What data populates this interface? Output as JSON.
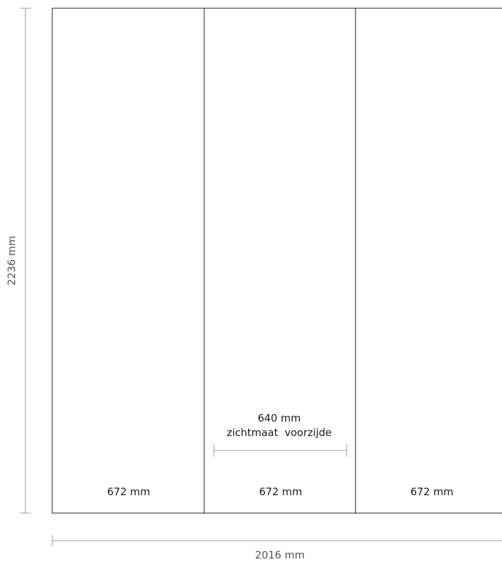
{
  "dimensions": {
    "height_label": "2236 mm",
    "width_label": "2016 mm"
  },
  "panels": [
    {
      "width_label": "672 mm"
    },
    {
      "width_label": "672 mm"
    },
    {
      "width_label": "672 mm"
    }
  ],
  "visible_width": {
    "value_label": "640 mm",
    "caption": "zichtmaat  voorzijde"
  },
  "colors": {
    "outline": "#1a1a1a",
    "dimension_line": "#9a9a9a",
    "dimension_text": "#555555"
  }
}
